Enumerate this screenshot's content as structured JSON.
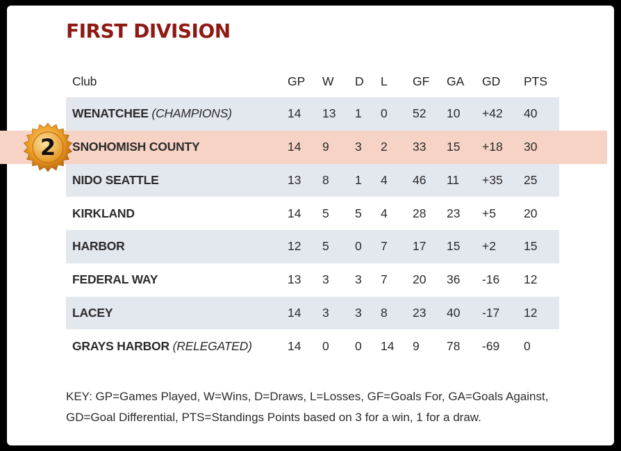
{
  "title": "FIRST DIVISION",
  "headers": {
    "club": "Club",
    "gp": "GP",
    "w": "W",
    "d": "D",
    "l": "L",
    "gf": "GF",
    "ga": "GA",
    "gd": "GD",
    "pts": "PTS"
  },
  "rows": [
    {
      "club": "WENATCHEE",
      "note": "(CHAMPIONS)",
      "gp": "14",
      "w": "13",
      "d": "1",
      "l": "0",
      "gf": "52",
      "ga": "10",
      "gd": "+42",
      "pts": "40"
    },
    {
      "club": "SNOHOMISH COUNTY",
      "note": "",
      "gp": "14",
      "w": "9",
      "d": "3",
      "l": "2",
      "gf": "33",
      "ga": "15",
      "gd": "+18",
      "pts": "30"
    },
    {
      "club": "NIDO SEATTLE",
      "note": "",
      "gp": "13",
      "w": "8",
      "d": "1",
      "l": "4",
      "gf": "46",
      "ga": "11",
      "gd": "+35",
      "pts": "25"
    },
    {
      "club": "KIRKLAND",
      "note": "",
      "gp": "14",
      "w": "5",
      "d": "5",
      "l": "4",
      "gf": "28",
      "ga": "23",
      "gd": "+5",
      "pts": "20"
    },
    {
      "club": "HARBOR",
      "note": "",
      "gp": "12",
      "w": "5",
      "d": "0",
      "l": "7",
      "gf": "17",
      "ga": "15",
      "gd": "+2",
      "pts": "15"
    },
    {
      "club": "FEDERAL WAY",
      "note": "",
      "gp": "13",
      "w": "3",
      "d": "3",
      "l": "7",
      "gf": "20",
      "ga": "36",
      "gd": "-16",
      "pts": "12"
    },
    {
      "club": "LACEY",
      "note": "",
      "gp": "14",
      "w": "3",
      "d": "3",
      "l": "8",
      "gf": "23",
      "ga": "40",
      "gd": "-17",
      "pts": "12"
    },
    {
      "club": "GRAYS HARBOR",
      "note": "(RELEGATED)",
      "gp": "14",
      "w": "0",
      "d": "0",
      "l": "14",
      "gf": "9",
      "ga": "78",
      "gd": "-69",
      "pts": "0"
    }
  ],
  "medal": {
    "number": "2",
    "icon": "medal-badge-icon",
    "color": "#e39a1f"
  },
  "key_text": "KEY: GP=Games Played, W=Wins, D=Draws, L=Losses, GF=Goals For, GA=Goals Against, GD=Goal Differential, PTS=Standings Points based on 3 for a win, 1 for a draw.",
  "colors": {
    "title": "#8e1a14",
    "shaded_row": "#e3e7ee",
    "highlight_row": "#f6d3c5"
  }
}
